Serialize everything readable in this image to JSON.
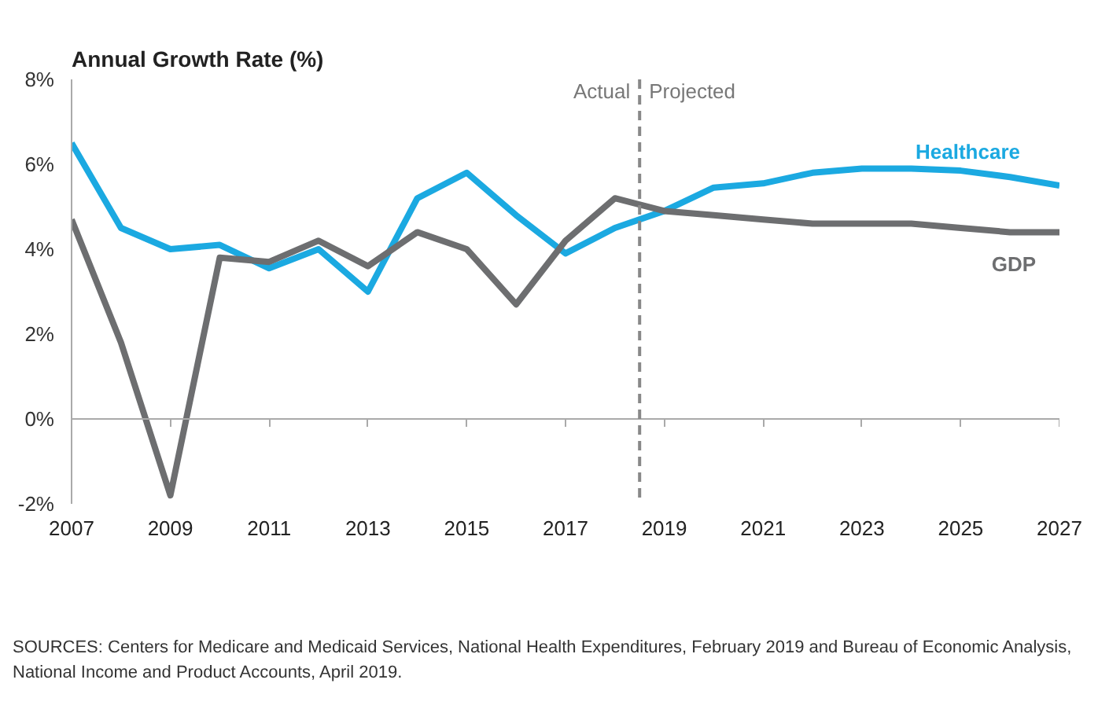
{
  "chart_data": {
    "type": "line",
    "title": "Annual Growth Rate (%)",
    "x": [
      2007,
      2008,
      2009,
      2010,
      2011,
      2012,
      2013,
      2014,
      2015,
      2016,
      2017,
      2018,
      2019,
      2020,
      2021,
      2022,
      2023,
      2024,
      2025,
      2026,
      2027
    ],
    "series": [
      {
        "name": "Healthcare",
        "color": "#1ba9e1",
        "values": [
          6.5,
          4.5,
          4.0,
          4.1,
          3.55,
          4.0,
          3.0,
          5.2,
          5.8,
          4.8,
          3.9,
          4.5,
          4.9,
          5.45,
          5.55,
          5.8,
          5.9,
          5.9,
          5.85,
          5.7,
          5.5
        ]
      },
      {
        "name": "GDP",
        "color": "#6d6e70",
        "values": [
          4.7,
          1.8,
          -1.8,
          3.8,
          3.7,
          4.2,
          3.6,
          4.4,
          4.0,
          2.7,
          4.2,
          5.2,
          4.9,
          4.8,
          4.7,
          4.6,
          4.6,
          4.6,
          4.5,
          4.4,
          4.4
        ]
      }
    ],
    "xlim": [
      2007,
      2027
    ],
    "xticks": [
      2007,
      2009,
      2011,
      2013,
      2015,
      2017,
      2019,
      2021,
      2023,
      2025,
      2027
    ],
    "ylim": [
      -2,
      8
    ],
    "yticks": [
      {
        "value": -2,
        "label": "-2%"
      },
      {
        "value": 0,
        "label": "0%"
      },
      {
        "value": 2,
        "label": "2%"
      },
      {
        "value": 4,
        "label": "4%"
      },
      {
        "value": 6,
        "label": "6%"
      },
      {
        "value": 8,
        "label": "8%"
      }
    ],
    "ref_lines": [
      {
        "axis": "x",
        "value": 2018.5,
        "color": "#888888",
        "line_style": "dashed"
      }
    ],
    "annotations": [
      "Actual",
      "Projected",
      "SOURCES: Centers for Medicare and Medicaid Services, National Health Expenditures, February 2019 and Bureau of Economic Analysis, National Income and Product Accounts, April 2019."
    ],
    "marker": "none",
    "line_style": "solid"
  }
}
